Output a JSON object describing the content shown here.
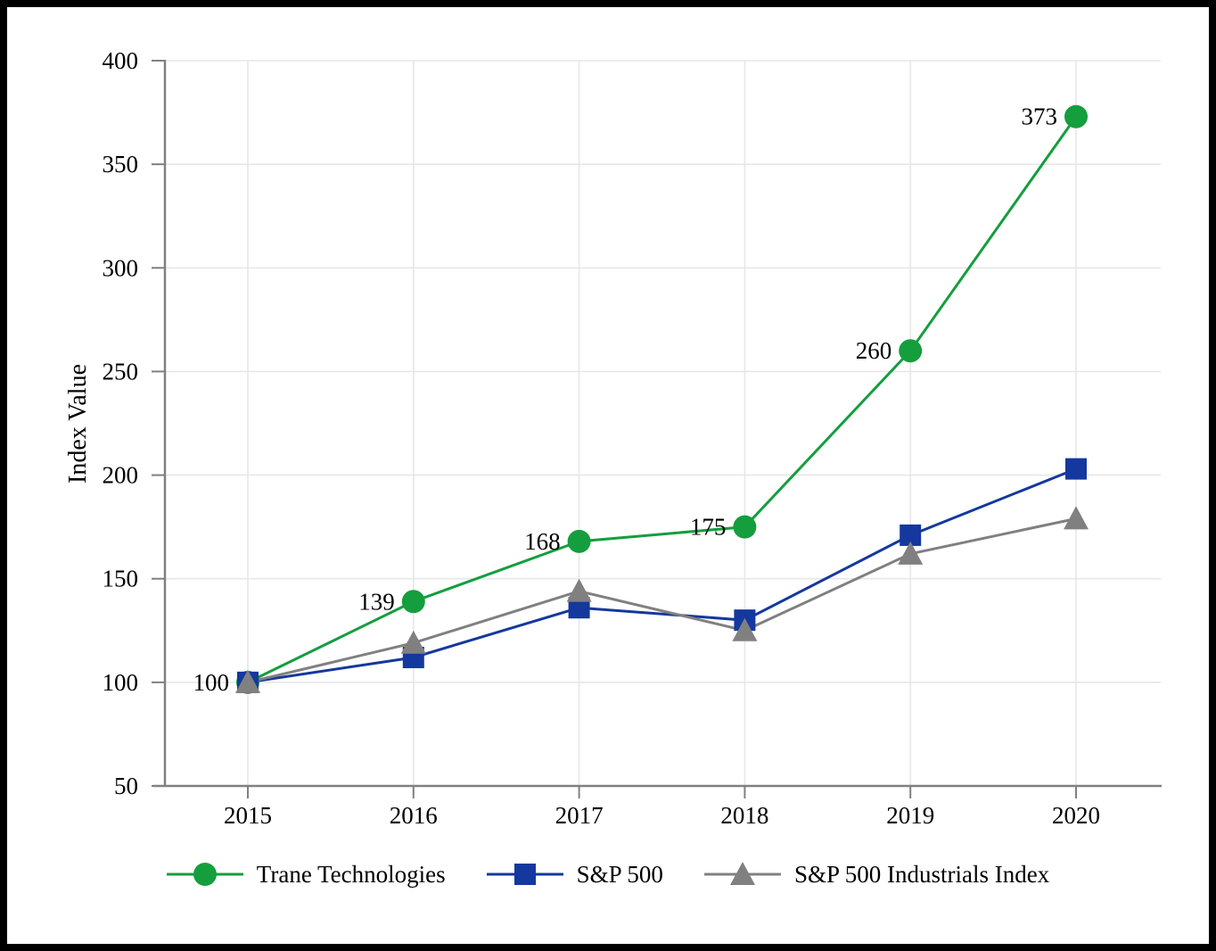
{
  "chart_data": {
    "type": "line",
    "title": "",
    "x": [
      2015,
      2016,
      2017,
      2018,
      2019,
      2020
    ],
    "xlabel": "",
    "ylabel": "Index Value",
    "ylim": [
      50,
      400
    ],
    "yticks": [
      50,
      100,
      150,
      200,
      250,
      300,
      350,
      400
    ],
    "grid": true,
    "legend_position": "bottom",
    "series": [
      {
        "name": "Trane Technologies",
        "marker": "circle",
        "color": "#149E3E",
        "values": [
          100,
          139,
          168,
          175,
          260,
          373
        ],
        "show_labels": true
      },
      {
        "name": "S&P 500",
        "marker": "square",
        "color": "#14389E",
        "values": [
          100,
          112,
          136,
          130,
          171,
          203
        ],
        "show_labels": false
      },
      {
        "name": "S&P 500 Industrials Index",
        "marker": "triangle",
        "color": "#808080",
        "values": [
          100,
          119,
          144,
          125,
          162,
          179
        ],
        "show_labels": false
      }
    ]
  },
  "style": {
    "background": "#FFFFFF",
    "frame_border": "#000000",
    "axis_color": "#808080",
    "grid_color": "#E7E7E7",
    "text_color": "#000000"
  }
}
